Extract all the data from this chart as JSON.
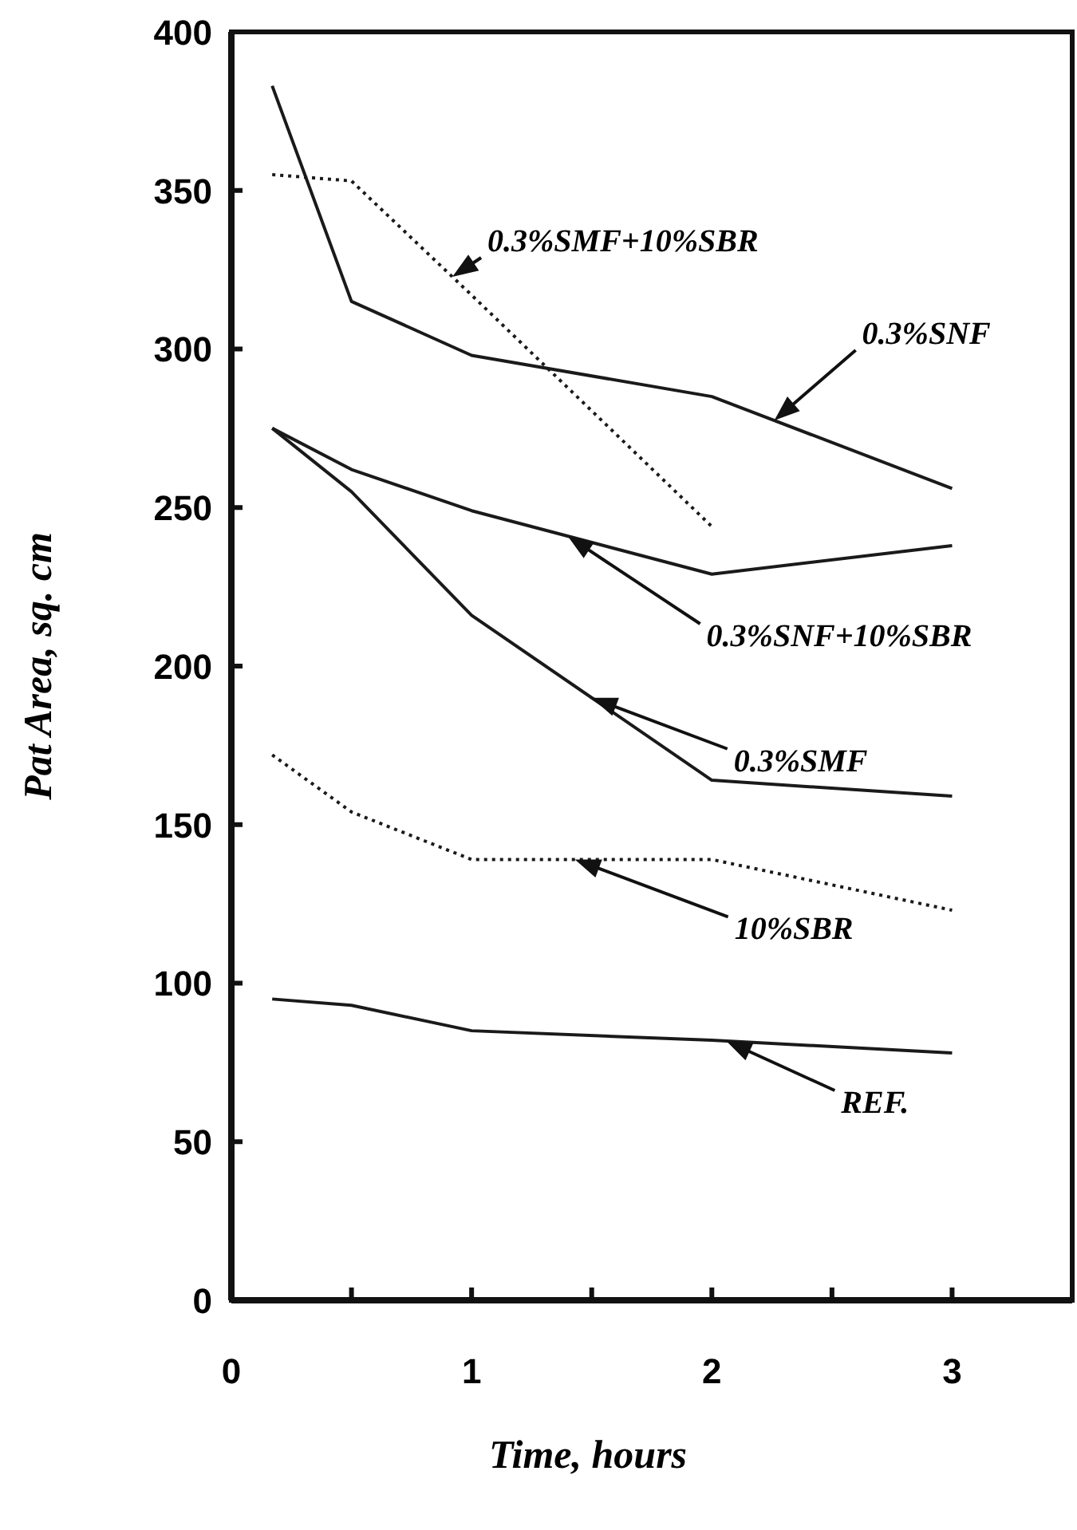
{
  "chart_data": {
    "type": "line",
    "xlabel": "Time, hours",
    "ylabel": "Pat Area, sq. cm",
    "xlim": [
      0,
      3.5
    ],
    "xticks": [
      0,
      {
        "value": 0.5,
        "label": null
      },
      1,
      {
        "value": 1.5,
        "label": null
      },
      2,
      {
        "value": 2.5,
        "label": null
      },
      3
    ],
    "ylim": [
      0,
      400
    ],
    "yticks": [
      0,
      50,
      100,
      150,
      200,
      250,
      300,
      350,
      400
    ],
    "grid": false,
    "marker": "none",
    "series": [
      {
        "name": "0.3%SNF",
        "color": "#1a1a1a",
        "line_style": "solid",
        "x": [
          0.17,
          0.5,
          1,
          2,
          3
        ],
        "values": [
          383,
          315,
          298,
          285,
          256
        ]
      },
      {
        "name": "0.3%SMF+10%SBR",
        "color": "#1a1a1a",
        "line_style": "dotted",
        "x": [
          0.17,
          0.5,
          1,
          2
        ],
        "values": [
          355,
          353,
          317,
          244
        ]
      },
      {
        "name": "0.3%SNF+10%SBR",
        "color": "#1a1a1a",
        "line_style": "solid",
        "x": [
          0.17,
          0.5,
          1,
          2,
          3
        ],
        "values": [
          275,
          262,
          249,
          229,
          238
        ]
      },
      {
        "name": "0.3%SMF",
        "color": "#1a1a1a",
        "line_style": "solid",
        "x": [
          0.17,
          0.5,
          1,
          2,
          3
        ],
        "values": [
          275,
          255,
          216,
          164,
          159
        ]
      },
      {
        "name": "10%SBR",
        "color": "#1a1a1a",
        "line_style": "dotted",
        "x": [
          0.17,
          0.5,
          1,
          1.5,
          2,
          3
        ],
        "values": [
          172,
          154,
          139,
          139,
          139,
          123
        ]
      },
      {
        "name": "REF.",
        "color": "#1a1a1a",
        "line_style": "solid",
        "x": [
          0.17,
          0.5,
          1,
          2,
          3
        ],
        "values": [
          95,
          93,
          85,
          82,
          78
        ]
      }
    ]
  }
}
